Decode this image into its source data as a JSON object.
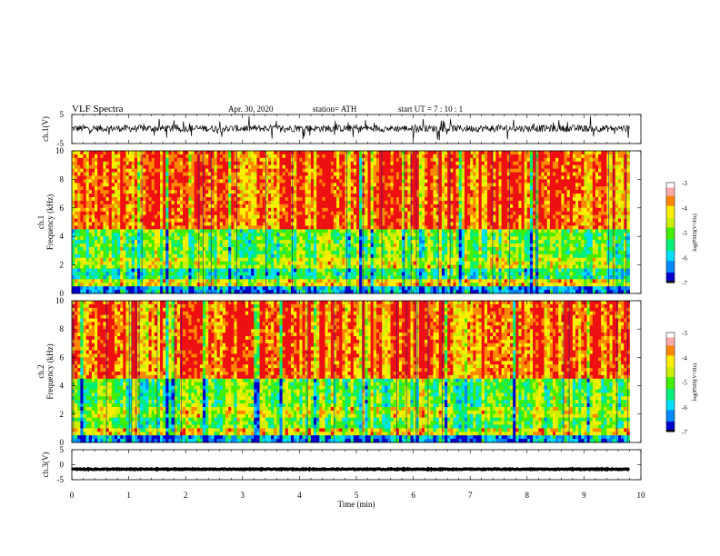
{
  "header": {
    "title": "VLF  Spectra",
    "date": "Apr. 30, 2020",
    "station": "station= ATH",
    "start": "start  UT  =   7  : 10 : 1"
  },
  "chart_data": [
    {
      "type": "line",
      "name": "ch1-waveform",
      "ylabel": "ch.1(V)",
      "ylim": [
        -5,
        5
      ],
      "y_ticks": [
        "5",
        "-5"
      ],
      "xlim": [
        0,
        10
      ],
      "x_end": 9.8,
      "baseline": 0.2,
      "noise_amplitude": 1.2,
      "color": "#000000"
    },
    {
      "type": "heatmap",
      "name": "ch1-spectrogram",
      "ylabel": "ch.1\nFrequency (kHz)",
      "ylim": [
        0,
        10
      ],
      "y_ticks": [
        "0",
        "2",
        "4",
        "6",
        "8",
        "10"
      ],
      "xlim": [
        0,
        10
      ],
      "x_end": 9.8,
      "colorbar": {
        "label": "log(PSD)(V²/Hz)",
        "range": [
          -7,
          -3
        ],
        "ticks": [
          "-3",
          "-4",
          "-5",
          "-6",
          "-7"
        ]
      }
    },
    {
      "type": "heatmap",
      "name": "ch2-spectrogram",
      "ylabel": "ch.2\nFrequency (kHz)",
      "ylim": [
        0,
        10
      ],
      "y_ticks": [
        "0",
        "2",
        "4",
        "6",
        "8",
        "10"
      ],
      "xlim": [
        0,
        10
      ],
      "x_end": 9.8,
      "colorbar": {
        "label": "log(PSD)(V²/Hz)",
        "range": [
          -7,
          -3
        ],
        "ticks": [
          "-3",
          "-4",
          "-5",
          "-6",
          "-7"
        ]
      }
    },
    {
      "type": "line",
      "name": "ch3-waveform",
      "ylabel": "ch.3(V)",
      "ylim": [
        -5,
        5
      ],
      "y_ticks": [
        "5",
        "0",
        "-5"
      ],
      "xlim": [
        0,
        10
      ],
      "x_end": 9.8,
      "baseline": -1.5,
      "noise_amplitude": 0.15,
      "color": "#000000"
    }
  ],
  "x_axis": {
    "label": "Time  (min)",
    "ticks": [
      "0",
      "1",
      "2",
      "3",
      "4",
      "5",
      "6",
      "7",
      "8",
      "9",
      "10"
    ]
  },
  "colormap": [
    "#000000",
    "#0000cc",
    "#0088ff",
    "#00ddff",
    "#00ee77",
    "#44ee00",
    "#ccee00",
    "#ffee00",
    "#ff8800",
    "#ee1111",
    "#ffffff"
  ]
}
